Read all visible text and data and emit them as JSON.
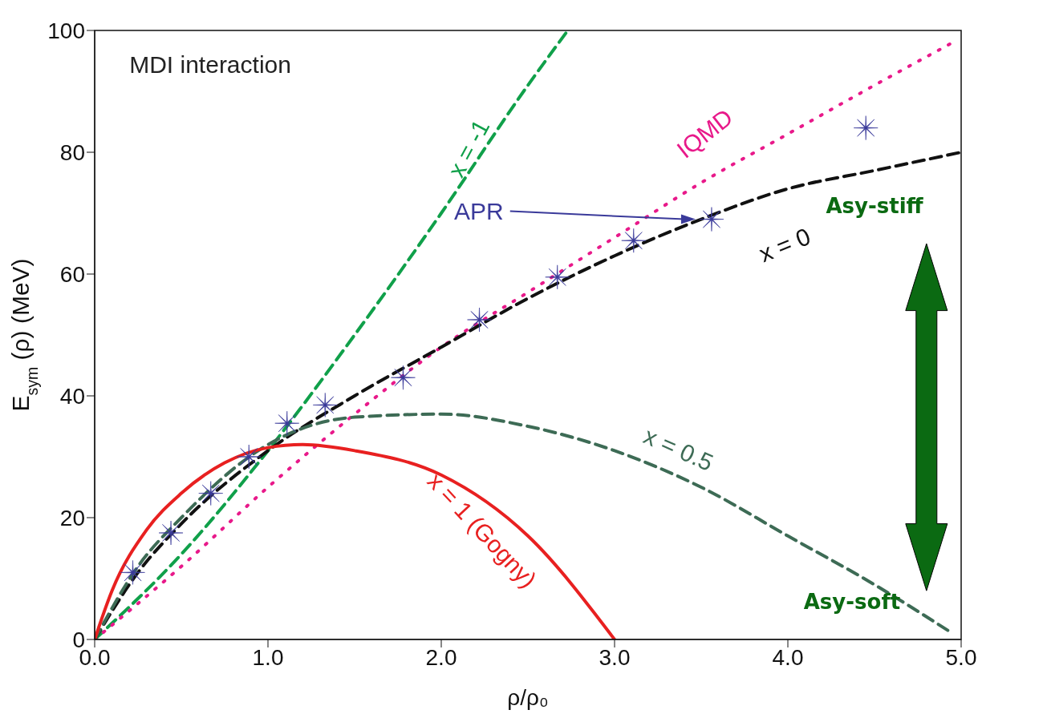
{
  "chart_data": {
    "type": "line",
    "xlabel": "ρ/ρ₀",
    "ylabel": "E$_{sym}$ (ρ) (MeV)",
    "xlim": [
      0,
      5
    ],
    "xticks": [
      {
        "value": 0,
        "label": "0.0"
      },
      {
        "value": 1,
        "label": "1.0"
      },
      {
        "value": 2,
        "label": "2.0"
      },
      {
        "value": 3,
        "label": "3.0"
      },
      {
        "value": 4,
        "label": "4.0"
      },
      {
        "value": 5,
        "label": "5.0"
      }
    ],
    "ylim": [
      0,
      100
    ],
    "yticks": [
      0,
      20,
      40,
      60,
      80,
      100
    ],
    "annotations": [
      "MDI interaction",
      "Asy-stiff",
      "Asy-soft"
    ],
    "series": [
      {
        "name": "x = -1",
        "color": "#10a04a",
        "line_style": "dashed",
        "marker": "none",
        "x": [
          0,
          0.5,
          1,
          1.5,
          2,
          2.5,
          2.73
        ],
        "values": [
          0,
          14,
          31,
          50,
          70,
          91,
          100
        ]
      },
      {
        "name": "IQMD",
        "color": "#e8198a",
        "line_style": "dotted",
        "marker": "none",
        "x": [
          0,
          0.5,
          1,
          1.5,
          2,
          2.5,
          3,
          3.5,
          4,
          4.5,
          4.95
        ],
        "values": [
          0,
          12,
          25,
          37,
          48,
          57,
          66,
          75,
          83,
          91,
          98
        ]
      },
      {
        "name": "APR",
        "type": "scatter",
        "color": "#3a3a9a",
        "marker": "star",
        "x": [
          0.22,
          0.44,
          0.67,
          0.89,
          1.11,
          1.33,
          1.78,
          2.22,
          2.67,
          3.11,
          3.56,
          4.45
        ],
        "values": [
          11,
          17.5,
          24,
          30,
          35.5,
          38.5,
          43,
          52.5,
          59.5,
          65.5,
          69,
          84
        ]
      },
      {
        "name": "x = 0",
        "color": "#111111",
        "line_style": "dashed",
        "marker": "none",
        "x": [
          0,
          0.25,
          0.5,
          1,
          1.5,
          2,
          2.5,
          3,
          3.5,
          4,
          4.5,
          5
        ],
        "values": [
          0,
          11,
          19,
          31,
          40,
          48,
          56,
          63,
          69,
          74,
          77,
          80
        ]
      },
      {
        "name": "x = 0.5",
        "color": "#3d6b55",
        "line_style": "dashed",
        "marker": "none",
        "x": [
          0,
          0.25,
          0.5,
          1,
          1.5,
          2,
          2.5,
          3,
          3.5,
          4,
          4.5,
          4.95
        ],
        "values": [
          0,
          12,
          20,
          32,
          36.5,
          37,
          35,
          31,
          25,
          17,
          9,
          1
        ]
      },
      {
        "name": "x = 1 (Gogny)",
        "color": "#e82020",
        "line_style": "solid",
        "marker": "none",
        "x": [
          0,
          0.1,
          0.3,
          0.5,
          0.75,
          1,
          1.2,
          1.5,
          2,
          2.5,
          3
        ],
        "values": [
          0,
          8,
          18,
          24,
          29,
          31.5,
          32,
          31,
          27,
          17,
          0
        ]
      }
    ]
  }
}
